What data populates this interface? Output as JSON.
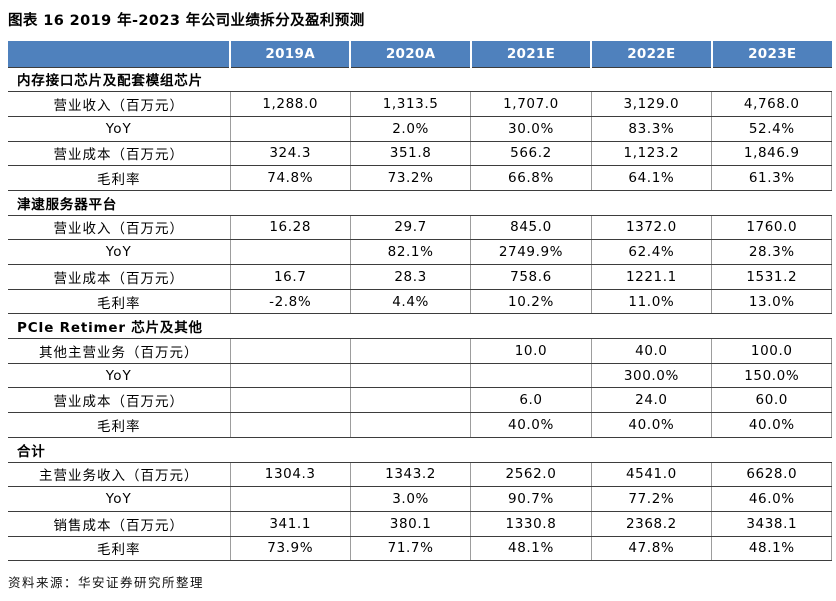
{
  "title": "图表 16 2019 年-2023 年公司业绩拆分及盈利预测",
  "source_note": "资料来源：华安证券研究所整理",
  "colors": {
    "header_bg": "#4F81BD",
    "header_text": "#FFFFFF",
    "rule": "#3D3D3D"
  },
  "table": {
    "columns": [
      "2019A",
      "2020A",
      "2021E",
      "2022E",
      "2023E"
    ],
    "sections": [
      {
        "header": "内存接口芯片及配套模组芯片",
        "rows": [
          {
            "label": "营业收入（百万元）",
            "values": [
              "1,288.0",
              "1,313.5",
              "1,707.0",
              "3,129.0",
              "4,768.0"
            ]
          },
          {
            "label": "YoY",
            "values": [
              "",
              "2.0%",
              "30.0%",
              "83.3%",
              "52.4%"
            ]
          },
          {
            "label": "营业成本（百万元）",
            "values": [
              "324.3",
              "351.8",
              "566.2",
              "1,123.2",
              "1,846.9"
            ]
          },
          {
            "label": "毛利率",
            "values": [
              "74.8%",
              "73.2%",
              "66.8%",
              "64.1%",
              "61.3%"
            ]
          }
        ]
      },
      {
        "header": "津逮服务器平台",
        "rows": [
          {
            "label": "营业收入（百万元）",
            "values": [
              "16.28",
              "29.7",
              "845.0",
              "1372.0",
              "1760.0"
            ]
          },
          {
            "label": "YoY",
            "values": [
              "",
              "82.1%",
              "2749.9%",
              "62.4%",
              "28.3%"
            ]
          },
          {
            "label": "营业成本（百万元）",
            "values": [
              "16.7",
              "28.3",
              "758.6",
              "1221.1",
              "1531.2"
            ]
          },
          {
            "label": "毛利率",
            "values": [
              "-2.8%",
              "4.4%",
              "10.2%",
              "11.0%",
              "13.0%"
            ]
          }
        ]
      },
      {
        "header": "PCIe Retimer 芯片及其他",
        "rows": [
          {
            "label": "其他主营业务（百万元）",
            "values": [
              "",
              "",
              "10.0",
              "40.0",
              "100.0"
            ]
          },
          {
            "label": "YoY",
            "values": [
              "",
              "",
              "",
              "300.0%",
              "150.0%"
            ]
          },
          {
            "label": "营业成本（百万元）",
            "values": [
              "",
              "",
              "6.0",
              "24.0",
              "60.0"
            ]
          },
          {
            "label": "毛利率",
            "values": [
              "",
              "",
              "40.0%",
              "40.0%",
              "40.0%"
            ]
          }
        ]
      },
      {
        "header": "合计",
        "rows": [
          {
            "label": "主营业务收入（百万元）",
            "values": [
              "1304.3",
              "1343.2",
              "2562.0",
              "4541.0",
              "6628.0"
            ]
          },
          {
            "label": "YoY",
            "values": [
              "",
              "3.0%",
              "90.7%",
              "77.2%",
              "46.0%"
            ]
          },
          {
            "label": "销售成本（百万元）",
            "values": [
              "341.1",
              "380.1",
              "1330.8",
              "2368.2",
              "3438.1"
            ]
          },
          {
            "label": "毛利率",
            "values": [
              "73.9%",
              "71.7%",
              "48.1%",
              "47.8%",
              "48.1%"
            ]
          }
        ]
      }
    ]
  }
}
